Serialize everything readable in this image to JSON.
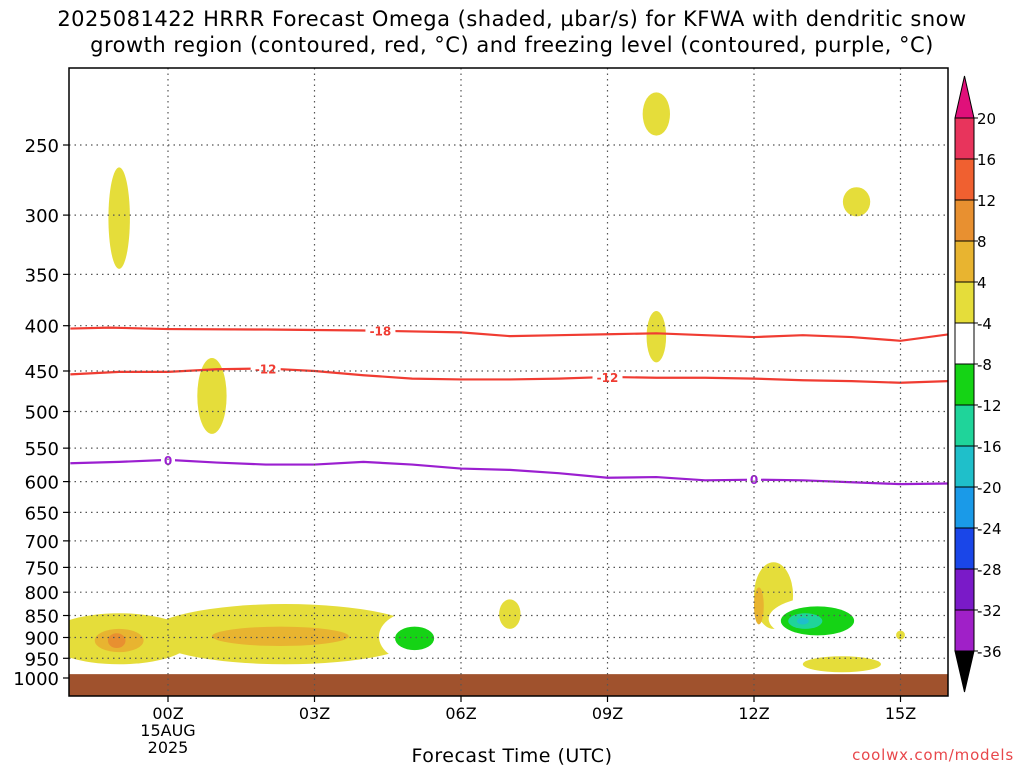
{
  "title": {
    "line1": "2025081422 HRRR Forecast Omega (shaded, µbar/s) for KFWA with dendritic snow",
    "line2": "growth region (contoured, red, °C) and freezing level (contoured, purple, °C)"
  },
  "credit": "coolwx.com/models",
  "chart_data": {
    "type": "heatmap",
    "xlabel": "Forecast Time (UTC)",
    "x_ticks": [
      {
        "hour": 0,
        "label": "00Z",
        "sub": [
          "15AUG",
          "2025"
        ]
      },
      {
        "hour": 3,
        "label": "03Z"
      },
      {
        "hour": 6,
        "label": "06Z"
      },
      {
        "hour": 9,
        "label": "09Z"
      },
      {
        "hour": 12,
        "label": "12Z"
      },
      {
        "hour": 15,
        "label": "15Z"
      }
    ],
    "xlim": [
      -2,
      16
    ],
    "y_ticks": [
      250,
      300,
      350,
      400,
      450,
      500,
      550,
      600,
      650,
      700,
      750,
      800,
      850,
      900,
      950,
      1000
    ],
    "y_unit": "hPa",
    "ylim": [
      1000,
      200
    ],
    "y_scale": "log",
    "grid": "dotted",
    "colorbar": {
      "levels": [
        20,
        16,
        12,
        8,
        4,
        -4,
        -8,
        -12,
        -16,
        -20,
        -24,
        -28,
        -32,
        -36
      ],
      "colors": [
        "#e8345c",
        "#f06030",
        "#e89030",
        "#e8b430",
        "#e5dd3a",
        "#ffffff",
        "#15d315",
        "#1fd49a",
        "#1fbfca",
        "#1a9ae8",
        "#1a46e8",
        "#7a1ac8",
        "#a020c8",
        "#a8a8a8",
        "#000000"
      ],
      "top_arrow_color": "#e0107a",
      "bottom_arrow_color": "#000000"
    },
    "contours": [
      {
        "level": -18,
        "color": "#f03c32",
        "label": "-18",
        "points": [
          [
            -2.0,
            403
          ],
          [
            -1.2,
            402
          ],
          [
            0,
            403.5
          ],
          [
            2,
            404
          ],
          [
            4,
            405
          ],
          [
            6,
            407
          ],
          [
            7,
            411
          ],
          [
            8,
            410
          ],
          [
            9,
            409
          ],
          [
            10,
            408
          ],
          [
            11,
            410
          ],
          [
            12,
            412
          ],
          [
            13,
            410
          ],
          [
            14,
            412
          ],
          [
            15,
            416
          ],
          [
            16,
            409
          ]
        ],
        "label_at": [
          [
            4.35,
            405
          ]
        ]
      },
      {
        "level": -12,
        "color": "#f03c32",
        "label": "-12",
        "points": [
          [
            -2.0,
            454
          ],
          [
            -1,
            451
          ],
          [
            0,
            451
          ],
          [
            1,
            448
          ],
          [
            2,
            447
          ],
          [
            3,
            450
          ],
          [
            4,
            455
          ],
          [
            5,
            459
          ],
          [
            6,
            460
          ],
          [
            7,
            460
          ],
          [
            8,
            459
          ],
          [
            9,
            457
          ],
          [
            10,
            458
          ],
          [
            11,
            458
          ],
          [
            12,
            459
          ],
          [
            13,
            461
          ],
          [
            14,
            462
          ],
          [
            15,
            464
          ],
          [
            16,
            462
          ]
        ],
        "label_at": [
          [
            2,
            447
          ],
          [
            9,
            457
          ]
        ]
      },
      {
        "level": 0,
        "color": "#9b1fd0",
        "label": "0",
        "points": [
          [
            -2.0,
            572
          ],
          [
            -1,
            570
          ],
          [
            0,
            567
          ],
          [
            1,
            571
          ],
          [
            2,
            574
          ],
          [
            3,
            574
          ],
          [
            4,
            570
          ],
          [
            5,
            574
          ],
          [
            6,
            580
          ],
          [
            7,
            582
          ],
          [
            8,
            587
          ],
          [
            9,
            594
          ],
          [
            10,
            593
          ],
          [
            11,
            598
          ],
          [
            12,
            597
          ],
          [
            13,
            598
          ],
          [
            14,
            601
          ],
          [
            15,
            604
          ],
          [
            16,
            603
          ]
        ],
        "label_at": [
          [
            0,
            567
          ],
          [
            12,
            596
          ]
        ]
      }
    ],
    "omega_regions": [
      {
        "value": 4,
        "center": [
          -1,
          303
        ],
        "rx": 0.22,
        "ry_hpa": [
          265,
          345
        ]
      },
      {
        "value": 4,
        "center": [
          0.9,
          480
        ],
        "rx": 0.3,
        "ry_hpa": [
          435,
          530
        ]
      },
      {
        "value": -4,
        "center": [
          2.0,
          435
        ],
        "rx": 0.18,
        "ry_hpa": [
          400,
          478
        ]
      },
      {
        "value": 4,
        "center": [
          10,
          232
        ],
        "rx": 0.28,
        "ry_hpa": [
          218,
          244
        ]
      },
      {
        "value": -4,
        "center": [
          10,
          313
        ],
        "rx": 0.6,
        "ry_hpa": [
          282,
          338
        ]
      },
      {
        "value": 4,
        "center": [
          10,
          415
        ],
        "rx": 0.2,
        "ry_hpa": [
          385,
          440
        ]
      },
      {
        "value": 4,
        "center": [
          14.1,
          290
        ],
        "rx": 0.28,
        "ry_hpa": [
          279,
          301
        ]
      },
      {
        "value": -4,
        "center": [
          5.2,
          580
        ],
        "rx": 0.4,
        "ry_hpa": [
          525,
          640
        ]
      },
      {
        "value": -4,
        "center": [
          13.3,
          700
        ],
        "rx": 0.75,
        "ry_hpa": [
          668,
          735
        ]
      },
      {
        "value": 4,
        "center": [
          12.4,
          815
        ],
        "rx": 0.4,
        "ry_hpa": [
          740,
          880
        ]
      },
      {
        "value": 8,
        "center": [
          12.1,
          830
        ],
        "rx": 0.1,
        "ry_hpa": [
          790,
          870
        ]
      },
      {
        "value": 4,
        "center": [
          7,
          848
        ],
        "rx": 0.22,
        "ry_hpa": [
          815,
          880
        ]
      },
      {
        "value": -4,
        "center": [
          10,
          880
        ],
        "rx": 0.24,
        "ry_hpa": [
          840,
          920
        ]
      },
      {
        "value": 4,
        "center": [
          -1,
          907
        ],
        "rx": 1.5,
        "ry_hpa": [
          845,
          965
        ]
      },
      {
        "value": 8,
        "center": [
          -1,
          907
        ],
        "rx": 0.5,
        "ry_hpa": [
          880,
          935
        ]
      },
      {
        "value": 12,
        "center": [
          -1.05,
          907
        ],
        "rx": 0.18,
        "ry_hpa": [
          890,
          925
        ]
      },
      {
        "value": 4,
        "center": [
          2.4,
          888
        ],
        "rx": 2.8,
        "ry_hpa": [
          825,
          965
        ]
      },
      {
        "value": 8,
        "center": [
          2.3,
          895
        ],
        "rx": 1.4,
        "ry_hpa": [
          875,
          920
        ]
      },
      {
        "value": -4,
        "center": [
          5.1,
          895
        ],
        "rx": 0.78,
        "ry_hpa": [
          840,
          960
        ]
      },
      {
        "value": -8,
        "center": [
          5.05,
          902
        ],
        "rx": 0.4,
        "ry_hpa": [
          875,
          930
        ]
      },
      {
        "value": -4,
        "center": [
          13.5,
          858
        ],
        "rx": 1.2,
        "ry_hpa": [
          808,
          910
        ]
      },
      {
        "value": -8,
        "center": [
          13.3,
          860
        ],
        "rx": 0.75,
        "ry_hpa": [
          830,
          895
        ]
      },
      {
        "value": -12,
        "center": [
          13.05,
          862
        ],
        "rx": 0.35,
        "ry_hpa": [
          845,
          880
        ]
      },
      {
        "value": -16,
        "center": [
          13.0,
          863
        ],
        "rx": 0.12,
        "ry_hpa": [
          855,
          870
        ]
      },
      {
        "value": 4,
        "center": [
          15.0,
          895
        ],
        "rx": 0.09,
        "ry_hpa": [
          884,
          905
        ]
      },
      {
        "value": -4,
        "center": [
          11.9,
          968
        ],
        "rx": 0.33,
        "ry_hpa": [
          955,
          982
        ]
      },
      {
        "value": 4,
        "center": [
          13.8,
          963
        ],
        "rx": 0.8,
        "ry_hpa": [
          945,
          985
        ]
      }
    ],
    "terrain": {
      "color": "#a0522d",
      "top_hpa": 990
    }
  }
}
